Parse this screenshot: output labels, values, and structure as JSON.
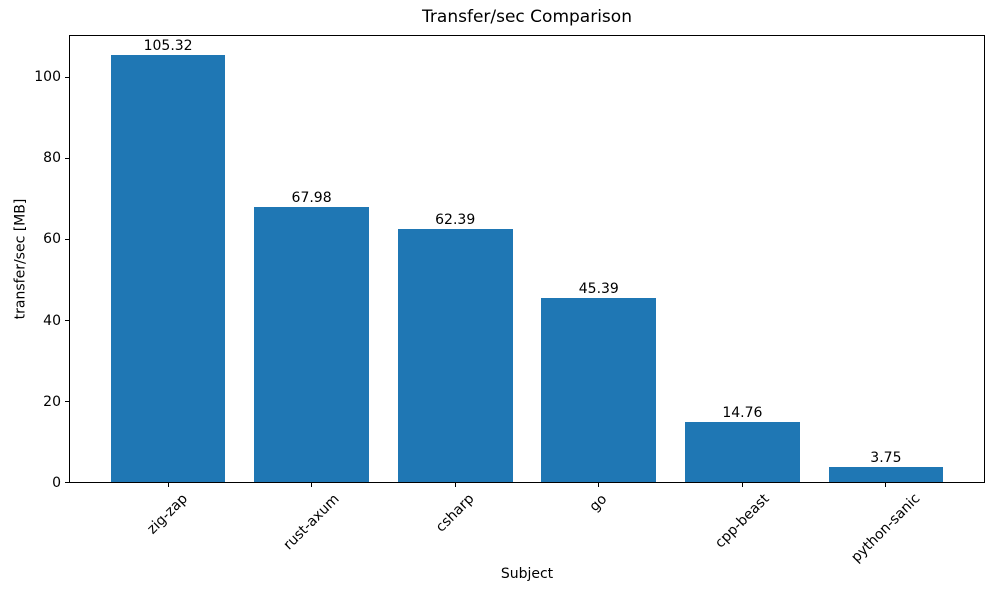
{
  "chart_data": {
    "type": "bar",
    "title": "Transfer/sec Comparison",
    "xlabel": "Subject",
    "ylabel": "transfer/sec [MB]",
    "categories": [
      "zig-zap",
      "rust-axum",
      "csharp",
      "go",
      "cpp-beast",
      "python-sanic"
    ],
    "values": [
      105.32,
      67.98,
      62.39,
      45.39,
      14.76,
      3.75
    ],
    "value_labels": [
      "105.32",
      "67.98",
      "62.39",
      "45.39",
      "14.76",
      "3.75"
    ],
    "yticks": [
      0,
      20,
      40,
      60,
      80,
      100
    ],
    "ylim": [
      0,
      110.59
    ],
    "grid": false,
    "legend_position": "none",
    "bar_color": "#1f77b4",
    "text_color": "#000000",
    "spine_color": "#000000"
  }
}
